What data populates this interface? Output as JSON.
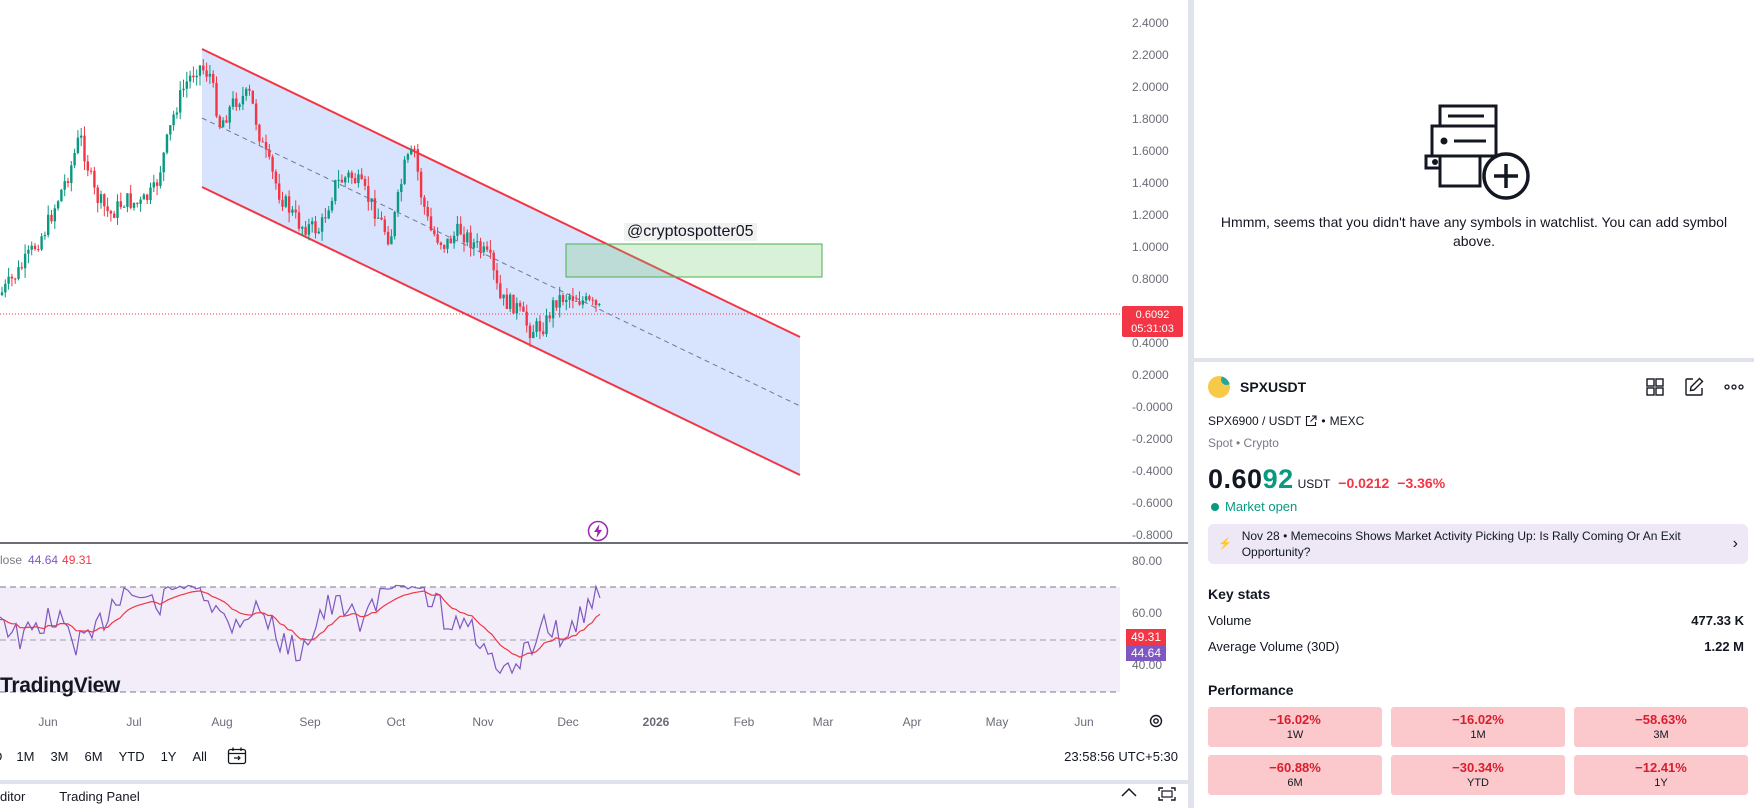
{
  "chart": {
    "price_axis": [
      "2.4000",
      "2.2000",
      "2.0000",
      "1.8000",
      "1.6000",
      "1.4000",
      "1.2000",
      "1.0000",
      "0.8000",
      "0.4000",
      "0.2000",
      "-0.0000",
      "-0.2000",
      "-0.4000",
      "-0.6000",
      "-0.8000"
    ],
    "last_price_badge": "0.6092",
    "countdown": "05:31:03",
    "annotation": "@cryptospotter05",
    "rsi_legend_prefix": "lose",
    "rsi_value": "44.64",
    "rsi_ma_value": "49.31",
    "rsi_axis": [
      "80.00",
      "60.00",
      "40.00"
    ],
    "rsi_badge_ma": "49.31",
    "rsi_badge_rsi": "44.64",
    "watermark": "TradingView",
    "time_axis": [
      "Jun",
      "Jul",
      "Aug",
      "Sep",
      "Oct",
      "Nov",
      "Dec",
      "2026",
      "Feb",
      "Mar",
      "Apr",
      "May",
      "Jun"
    ],
    "colors": {
      "up": "#089981",
      "down": "#f23645",
      "channel_fill": "#d6e2fd",
      "channel_line": "#f23645",
      "rsi": "#7e57c2",
      "rsi_ma": "#f23645"
    }
  },
  "range_bar": {
    "items": [
      "D",
      "1M",
      "3M",
      "6M",
      "YTD",
      "1Y",
      "All"
    ],
    "clock": "23:58:56 UTC+5:30"
  },
  "bottom_tabs": [
    "ditor",
    "Trading Panel"
  ],
  "watchlist": {
    "empty_message": "Hmmm, seems that you didn't have any symbols in watchlist. You can add symbol above."
  },
  "symbol": {
    "ticker": "SPXUSDT",
    "pair": "SPX6900 / USDT",
    "exchange": "MEXC",
    "type": "Spot • Crypto",
    "price_head": "0.60",
    "price_tail": "92",
    "unit": "USDT",
    "change": "−0.0212",
    "change_pct": "−3.36%",
    "market_status": "Market open"
  },
  "news": {
    "date": "Nov 28",
    "headline": "Memecoins Shows Market Activity Picking Up: Is Rally Coming Or An Exit Opportunity?"
  },
  "key_stats": {
    "title": "Key stats",
    "rows": [
      {
        "label": "Volume",
        "value": "477.33 K"
      },
      {
        "label": "Average Volume (30D)",
        "value": "1.22 M"
      }
    ]
  },
  "performance": {
    "title": "Performance",
    "cells": [
      {
        "value": "−16.02%",
        "label": "1W"
      },
      {
        "value": "−16.02%",
        "label": "1M"
      },
      {
        "value": "−58.63%",
        "label": "3M"
      },
      {
        "value": "−60.88%",
        "label": "6M"
      },
      {
        "value": "−30.34%",
        "label": "YTD"
      },
      {
        "value": "−12.41%",
        "label": "1Y"
      }
    ]
  }
}
